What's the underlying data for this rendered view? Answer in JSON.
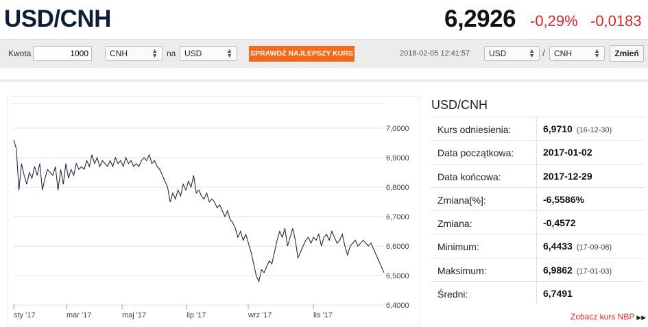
{
  "header": {
    "pair": "USD/CNH",
    "rate": "6,2926",
    "change_pct": "-0,29%",
    "change_abs": "-0,0183"
  },
  "toolbar": {
    "amount_label": "Kwota",
    "amount_value": "1000",
    "from_currency": "CNH",
    "to_label": "na",
    "to_currency": "USD",
    "best_rate_button": "SPRAWDŹ NAJLEPSZY KURS",
    "timestamp": "2018-02-05 12:41:57",
    "pair_base": "USD",
    "pair_separator": "/",
    "pair_quote": "CNH",
    "swap_button": "Zmień"
  },
  "stats": {
    "title": "USD/CNH",
    "rows": [
      {
        "label": "Kurs odniesienia:",
        "value": "6,9710",
        "note": "(16-12-30)"
      },
      {
        "label": "Data początkowa:",
        "value": "2017-01-02",
        "note": ""
      },
      {
        "label": "Data końcowa:",
        "value": "2017-12-29",
        "note": ""
      },
      {
        "label": "Zmiana[%]:",
        "value": "-6,5586%",
        "note": ""
      },
      {
        "label": "Zmiana:",
        "value": "-0,4572",
        "note": ""
      },
      {
        "label": "Minimum:",
        "value": "6,4433",
        "note": "(17-09-08)"
      },
      {
        "label": "Maksimum:",
        "value": "6,9862",
        "note": "(17-01-03)"
      },
      {
        "label": "Średni:",
        "value": "6,7491",
        "note": ""
      }
    ],
    "nbp_link": "Zobacz kurs NBP"
  },
  "chart_data": {
    "type": "line",
    "xlabels": [
      "sty '17",
      "mar '17",
      "maj '17",
      "lip '17",
      "wrz '17",
      "lis '17"
    ],
    "yticks": [
      "7,0000",
      "6,9000",
      "6,8000",
      "6,7000",
      "6,6000",
      "6,5000",
      "6,4000"
    ],
    "ylim": [
      6.4,
      7.0
    ],
    "grid": true,
    "line_color": "#1c2a44",
    "series": [
      {
        "values": [
          6.96,
          6.93,
          6.79,
          6.88,
          6.84,
          6.81,
          6.85,
          6.83,
          6.87,
          6.84,
          6.88,
          6.79,
          6.83,
          6.86,
          6.85,
          6.84,
          6.87,
          6.79,
          6.86,
          6.81,
          6.88,
          6.83,
          6.86,
          6.84,
          6.88,
          6.86,
          6.87,
          6.86,
          6.89,
          6.87,
          6.91,
          6.88,
          6.9,
          6.87,
          6.89,
          6.88,
          6.87,
          6.89,
          6.87,
          6.9,
          6.88,
          6.89,
          6.87,
          6.9,
          6.88,
          6.89,
          6.87,
          6.88,
          6.87,
          6.89,
          6.9,
          6.89,
          6.91,
          6.88,
          6.89,
          6.87,
          6.86,
          6.84,
          6.82,
          6.8,
          6.75,
          6.78,
          6.76,
          6.79,
          6.77,
          6.81,
          6.79,
          6.82,
          6.8,
          6.84,
          6.78,
          6.79,
          6.77,
          6.76,
          6.78,
          6.75,
          6.76,
          6.75,
          6.73,
          6.74,
          6.72,
          6.7,
          6.72,
          6.69,
          6.68,
          6.66,
          6.63,
          6.65,
          6.62,
          6.64,
          6.61,
          6.58,
          6.54,
          6.5,
          6.48,
          6.52,
          6.51,
          6.53,
          6.55,
          6.54,
          6.58,
          6.62,
          6.65,
          6.63,
          6.66,
          6.6,
          6.63,
          6.66,
          6.62,
          6.56,
          6.58,
          6.6,
          6.62,
          6.63,
          6.61,
          6.63,
          6.62,
          6.64,
          6.6,
          6.63,
          6.64,
          6.62,
          6.65,
          6.63,
          6.61,
          6.62,
          6.64,
          6.6,
          6.57,
          6.6,
          6.61,
          6.62,
          6.6,
          6.61,
          6.62,
          6.61,
          6.6,
          6.61,
          6.59,
          6.57,
          6.55,
          6.53,
          6.51
        ]
      }
    ]
  }
}
